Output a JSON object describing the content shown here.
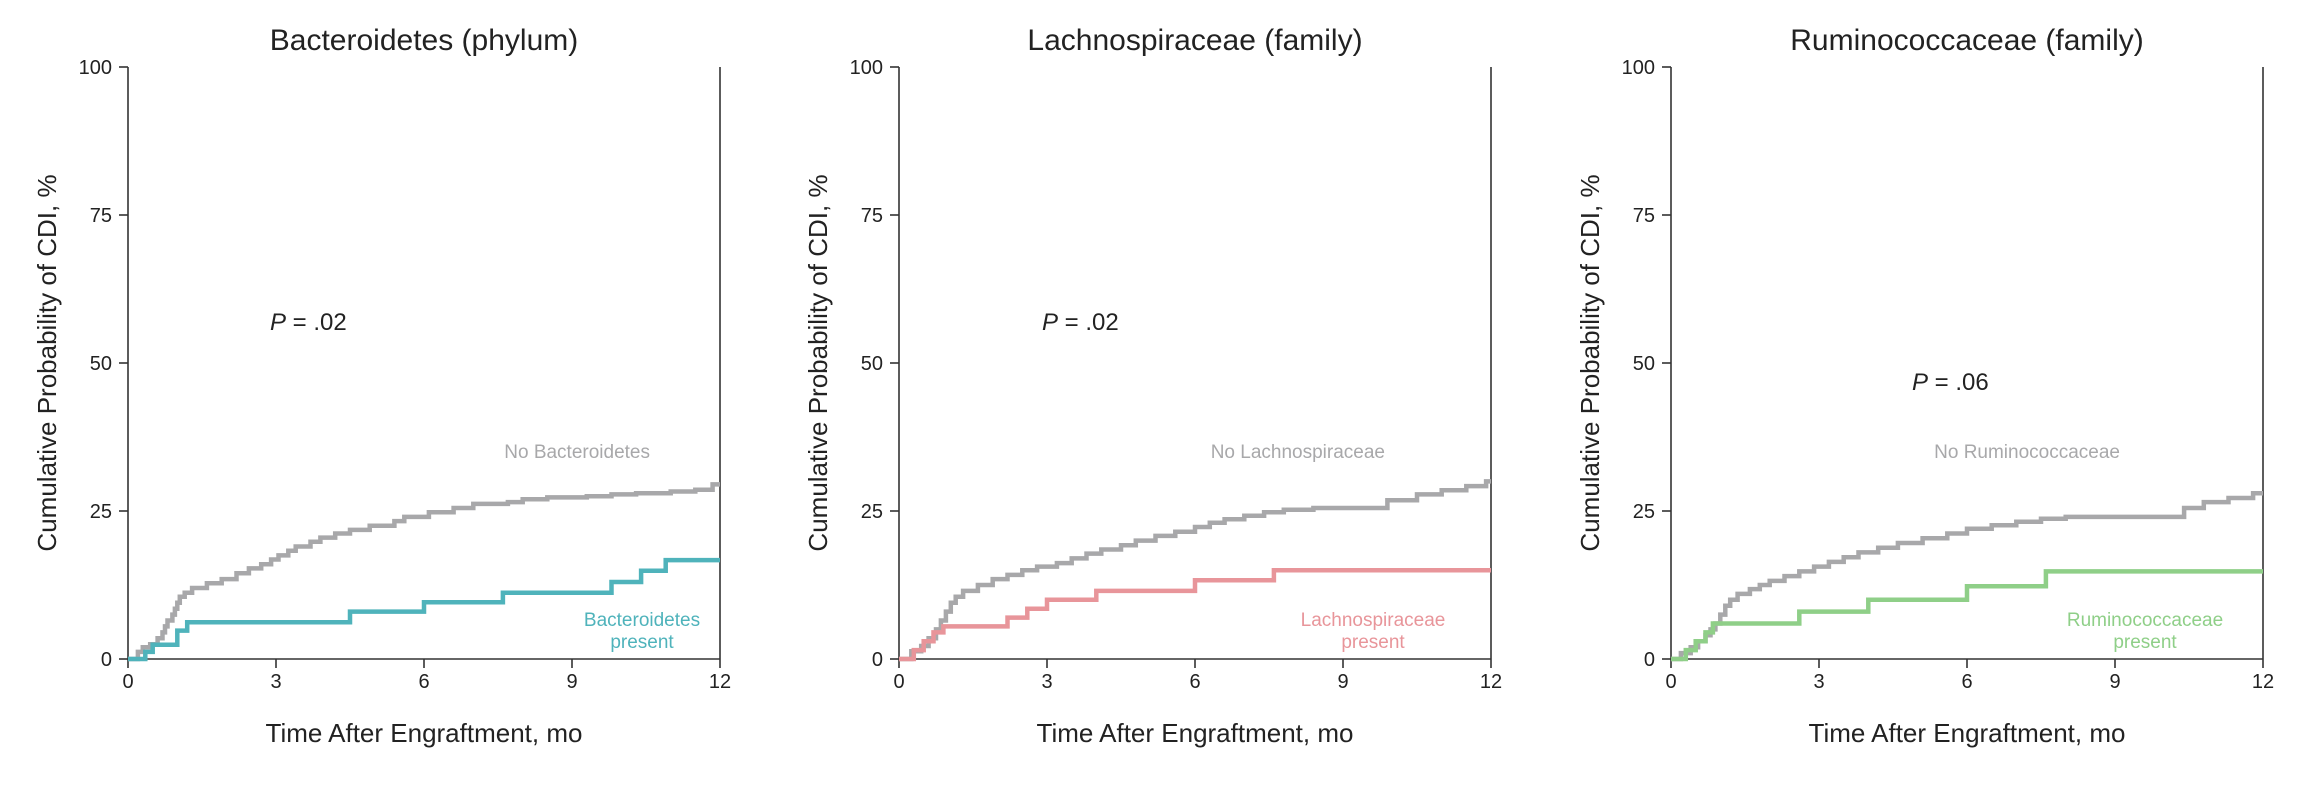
{
  "chart_data": [
    {
      "type": "line",
      "step": true,
      "title": "Bacteroidetes (phylum)",
      "xlabel": "Time After Engraftment, mo",
      "ylabel": "Cumulative Probability of CDI, %",
      "xlim": [
        0,
        12
      ],
      "ylim": [
        0,
        100
      ],
      "xticks": [
        0,
        3,
        6,
        9,
        12
      ],
      "yticks": [
        0,
        25,
        50,
        75,
        100
      ],
      "annotation": {
        "prefix": "P",
        "text": " = .02"
      },
      "series": [
        {
          "name": "No Bacteroidetes",
          "color": "#a8a8aa",
          "x": [
            0,
            0.2,
            0.3,
            0.45,
            0.6,
            0.7,
            0.75,
            0.8,
            0.9,
            0.95,
            1.0,
            1.05,
            1.15,
            1.3,
            1.6,
            1.9,
            2.2,
            2.45,
            2.7,
            2.9,
            3.05,
            3.25,
            3.4,
            3.7,
            3.9,
            4.2,
            4.5,
            4.9,
            5.4,
            5.6,
            6.1,
            6.6,
            7.0,
            7.7,
            8.0,
            8.5,
            9.3,
            9.8,
            10.3,
            11.0,
            11.5,
            11.85,
            12.0
          ],
          "y": [
            0,
            1.2,
            2.0,
            2.5,
            3.5,
            4.5,
            5.5,
            6.5,
            7.5,
            8.5,
            9.5,
            10.5,
            11.2,
            12.0,
            12.8,
            13.5,
            14.5,
            15.3,
            16.0,
            16.8,
            17.5,
            18.3,
            19.0,
            19.8,
            20.5,
            21.2,
            21.8,
            22.5,
            23.3,
            24.0,
            24.8,
            25.5,
            26.2,
            26.5,
            27.0,
            27.3,
            27.5,
            27.8,
            28.0,
            28.3,
            28.6,
            29.5,
            29.5
          ]
        },
        {
          "name": "Bacteroidetes present",
          "color": "#4fb3bb",
          "x": [
            0,
            0.35,
            0.5,
            1.0,
            1.2,
            4.5,
            6.0,
            7.6,
            9.8,
            10.4,
            10.9,
            12.0
          ],
          "y": [
            0,
            1.2,
            2.4,
            4.8,
            6.2,
            8.0,
            9.6,
            11.2,
            13.0,
            14.9,
            16.7,
            16.7
          ]
        }
      ],
      "series_labels": [
        {
          "series": 0,
          "lines": [
            "No Bacteroidetes"
          ]
        },
        {
          "series": 1,
          "lines": [
            "Bacteroidetes",
            "present"
          ]
        }
      ]
    },
    {
      "type": "line",
      "step": true,
      "title": "Lachnospiraceae (family)",
      "xlabel": "Time After Engraftment, mo",
      "ylabel": "Cumulative Probability of CDI, %",
      "xlim": [
        0,
        12
      ],
      "ylim": [
        0,
        100
      ],
      "xticks": [
        0,
        3,
        6,
        9,
        12
      ],
      "yticks": [
        0,
        25,
        50,
        75,
        100
      ],
      "annotation": {
        "prefix": "P",
        "text": " = .02"
      },
      "series": [
        {
          "name": "No Lachnospiraceae",
          "color": "#a8a8aa",
          "x": [
            0,
            0.25,
            0.45,
            0.6,
            0.75,
            0.85,
            0.95,
            1.05,
            1.15,
            1.3,
            1.6,
            1.9,
            2.2,
            2.5,
            2.8,
            3.2,
            3.5,
            3.8,
            4.1,
            4.5,
            4.8,
            5.2,
            5.6,
            6.0,
            6.3,
            6.6,
            7.0,
            7.4,
            7.8,
            8.4,
            9.0,
            9.6,
            9.9,
            10.5,
            11.0,
            11.5,
            11.9,
            12.0
          ],
          "y": [
            0,
            1.3,
            2.2,
            3.5,
            5.0,
            6.5,
            8.0,
            9.5,
            10.5,
            11.5,
            12.5,
            13.5,
            14.2,
            15.0,
            15.6,
            16.2,
            17.0,
            17.8,
            18.5,
            19.2,
            20.0,
            20.8,
            21.5,
            22.3,
            23.0,
            23.6,
            24.2,
            24.8,
            25.2,
            25.5,
            25.5,
            25.5,
            26.8,
            27.8,
            28.5,
            29.2,
            30.0,
            30.0
          ]
        },
        {
          "name": "Lachnospiraceae present",
          "color": "#e8959a",
          "x": [
            0,
            0.3,
            0.5,
            0.7,
            0.9,
            2.2,
            2.6,
            3.0,
            4.0,
            6.0,
            7.6,
            12.0
          ],
          "y": [
            0,
            1.5,
            3.0,
            4.5,
            5.5,
            7.0,
            8.5,
            10.0,
            11.5,
            13.3,
            15.0,
            15.0
          ]
        }
      ],
      "series_labels": [
        {
          "series": 0,
          "lines": [
            "No Lachnospiraceae"
          ]
        },
        {
          "series": 1,
          "lines": [
            "Lachnospiraceae",
            "present"
          ]
        }
      ]
    },
    {
      "type": "line",
      "step": true,
      "title": "Ruminococcaceae (family)",
      "xlabel": "Time After Engraftment, mo",
      "ylabel": "Cumulative Probability of CDI, %",
      "xlim": [
        0,
        12
      ],
      "ylim": [
        0,
        100
      ],
      "xticks": [
        0,
        3,
        6,
        9,
        12
      ],
      "yticks": [
        0,
        25,
        50,
        75,
        100
      ],
      "annotation": {
        "prefix": "P",
        "text": " = .06"
      },
      "series": [
        {
          "name": "No Ruminococcaceae",
          "color": "#a8a8aa",
          "x": [
            0,
            0.2,
            0.4,
            0.55,
            0.7,
            0.8,
            0.9,
            1.0,
            1.1,
            1.2,
            1.35,
            1.6,
            1.8,
            2.0,
            2.3,
            2.6,
            2.9,
            3.2,
            3.5,
            3.8,
            4.2,
            4.6,
            5.1,
            5.6,
            6.0,
            6.5,
            7.0,
            7.5,
            8.0,
            8.6,
            9.3,
            9.9,
            10.4,
            10.8,
            11.3,
            11.8,
            12.0
          ],
          "y": [
            0,
            1.0,
            2.0,
            3.0,
            4.0,
            5.0,
            6.0,
            7.5,
            9.0,
            10.0,
            11.0,
            11.8,
            12.5,
            13.2,
            14.0,
            14.8,
            15.6,
            16.4,
            17.2,
            18.0,
            18.8,
            19.6,
            20.4,
            21.2,
            22.0,
            22.6,
            23.2,
            23.7,
            24.0,
            24.0,
            24.0,
            24.0,
            25.5,
            26.5,
            27.2,
            28.0,
            28.0
          ]
        },
        {
          "name": "Ruminococcaceae present",
          "color": "#8fcf88",
          "x": [
            0,
            0.3,
            0.5,
            0.7,
            0.85,
            2.6,
            4.0,
            6.0,
            7.6,
            12.0
          ],
          "y": [
            0,
            1.5,
            3.0,
            4.5,
            6.0,
            8.0,
            10.0,
            12.3,
            14.8,
            14.8
          ]
        }
      ],
      "series_labels": [
        {
          "series": 0,
          "lines": [
            "No Ruminococcaceae"
          ]
        },
        {
          "series": 1,
          "lines": [
            "Ruminococcaceae",
            "present"
          ]
        }
      ]
    }
  ]
}
